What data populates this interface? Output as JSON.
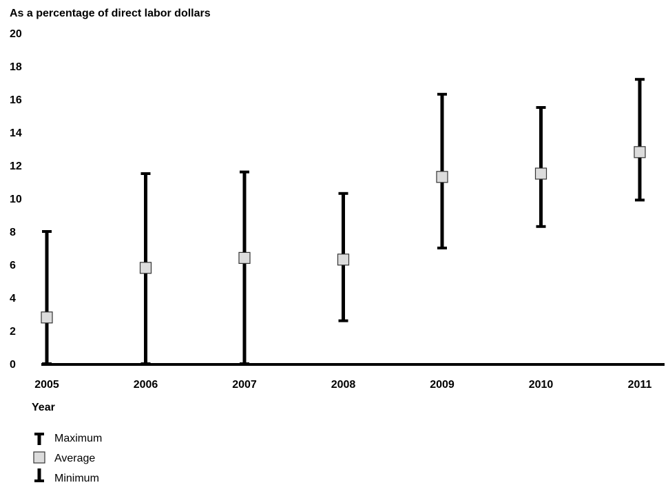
{
  "chart_data": {
    "type": "error-bar",
    "ylabel": "As a percentage of direct labor dollars",
    "xlabel": "Year",
    "ylim": [
      0,
      20
    ],
    "yticks": [
      0,
      2,
      4,
      6,
      8,
      10,
      12,
      14,
      16,
      18,
      20
    ],
    "categories": [
      "2005",
      "2006",
      "2007",
      "2008",
      "2009",
      "2010",
      "2011"
    ],
    "series": [
      {
        "name": "Maximum",
        "values": [
          8.0,
          11.5,
          11.6,
          10.3,
          16.3,
          15.5,
          17.2
        ]
      },
      {
        "name": "Average",
        "values": [
          2.8,
          5.8,
          6.4,
          6.3,
          11.3,
          11.5,
          12.8
        ]
      },
      {
        "name": "Minimum",
        "values": [
          0.0,
          0.0,
          0.0,
          2.6,
          7.0,
          8.3,
          9.9
        ]
      }
    ],
    "grid": false,
    "legend_position": "bottom-left"
  },
  "colors": {
    "line": "#000000",
    "marker_fill": "#dcdcdc",
    "marker_stroke": "#333333"
  }
}
